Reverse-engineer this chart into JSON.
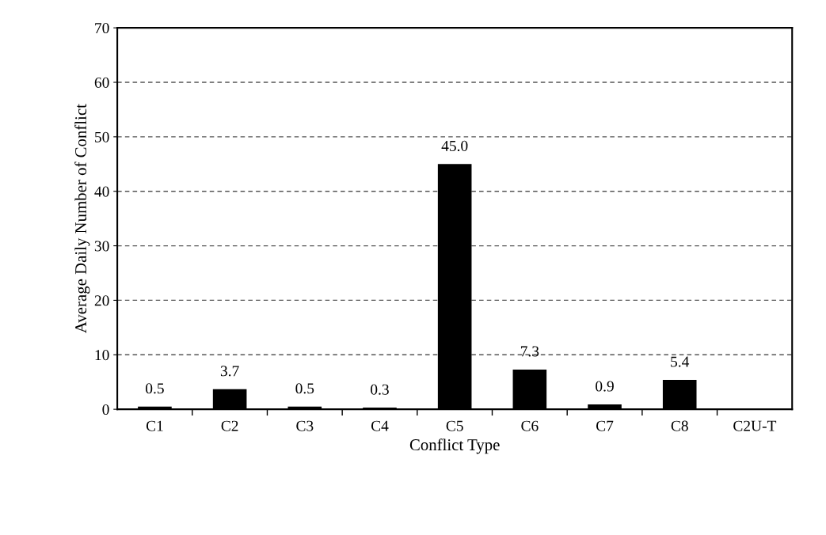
{
  "chart_data": {
    "type": "bar",
    "xlabel": "Conflict Type",
    "ylabel": "Average Daily Number of Conflict",
    "categories": [
      "C1",
      "C2",
      "C3",
      "C4",
      "C5",
      "C6",
      "C7",
      "C8",
      "C2U-T"
    ],
    "values": [
      0.5,
      3.7,
      0.5,
      0.3,
      45.0,
      7.3,
      0.9,
      5.4,
      0
    ],
    "value_labels": [
      "0.5",
      "3.7",
      "0.5",
      "0.3",
      "45.0",
      "7.3",
      "0.9",
      "5.4",
      null
    ],
    "color": "#000000",
    "ylim": [
      0,
      70
    ],
    "yticks": [
      0,
      10,
      20,
      30,
      40,
      50,
      60,
      70
    ],
    "grid": "y",
    "line_style": "dashed"
  }
}
